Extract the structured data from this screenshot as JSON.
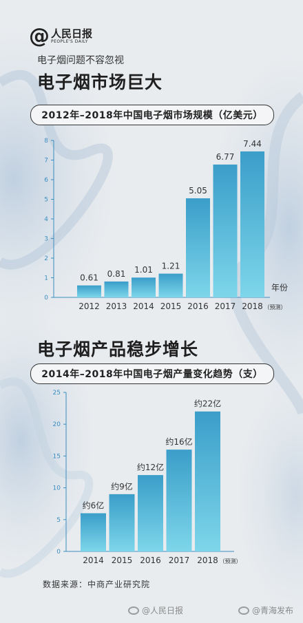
{
  "logo": {
    "mark": "@",
    "name_cn": "人民日报",
    "name_en": "PEOPLE'S DAILY"
  },
  "subtitle": "电子烟问题不容忽视",
  "section1_heading": "电子烟市场巨大",
  "section2_heading": "电子烟产品稳步增长",
  "source": "数据来源：中商产业研究院",
  "watermarks": [
    "@人民日报",
    "@青海发布"
  ],
  "colors": {
    "bar_top": "#3b9ec9",
    "bar_bottom": "#7dd6ea",
    "axis": "#3a8cc0"
  },
  "chart_data": [
    {
      "type": "bar",
      "title": "2012年–2018年中国电子烟市场规模（亿美元）",
      "categories": [
        "2012",
        "2013",
        "2014",
        "2015",
        "2016",
        "2017",
        "2018"
      ],
      "values": [
        0.61,
        0.81,
        1.01,
        1.21,
        5.05,
        6.77,
        7.44
      ],
      "value_labels": [
        "0.61",
        "0.81",
        "1.01",
        "1.21",
        "5.05",
        "6.77",
        "7.44"
      ],
      "ylim": [
        0,
        8
      ],
      "yticks": [
        0,
        1,
        2,
        3,
        4,
        5,
        6,
        7,
        8
      ],
      "xlabel": "年份",
      "ylabel": "",
      "forecast_note": "（预测）",
      "grid": false,
      "legend": "none"
    },
    {
      "type": "bar",
      "title": "2014年–2018年中国电子烟产量变化趋势（支）",
      "categories": [
        "2014",
        "2015",
        "2016",
        "2017",
        "2018"
      ],
      "values": [
        6,
        9,
        12,
        16,
        22
      ],
      "value_labels": [
        "约6亿",
        "约9亿",
        "约12亿",
        "约16亿",
        "约22亿"
      ],
      "ylim": [
        0,
        25
      ],
      "yticks": [
        0,
        5,
        10,
        15,
        20,
        25
      ],
      "xlabel": "",
      "ylabel": "",
      "forecast_note": "（预测）",
      "grid": false,
      "legend": "none"
    }
  ]
}
